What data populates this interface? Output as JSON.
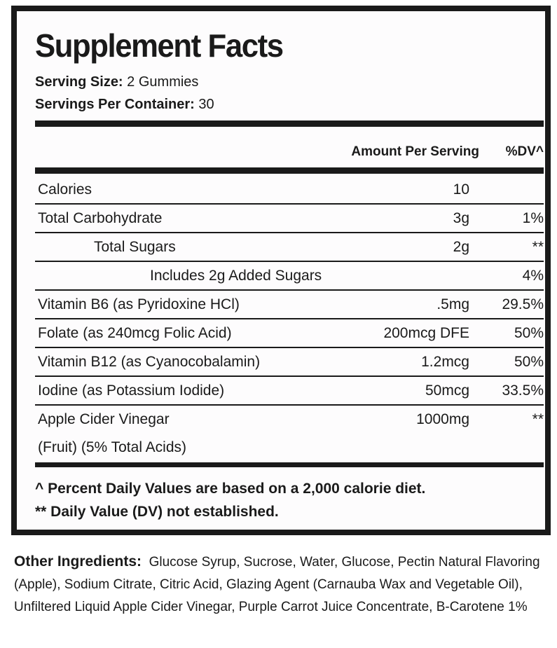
{
  "title": "Supplement Facts",
  "serving_size": {
    "label": "Serving Size:",
    "value": "2 Gummies"
  },
  "servings_per_container": {
    "label": "Servings Per Container:",
    "value": "30"
  },
  "headers": {
    "amount": "Amount Per Serving",
    "dv": "%DV^"
  },
  "rows": [
    {
      "name": "Calories",
      "amount": "10",
      "dv": ""
    },
    {
      "name": "Total Carbohydrate",
      "amount": "3g",
      "dv": "1%"
    },
    {
      "name": "Total Sugars",
      "amount": "2g",
      "dv": "**"
    },
    {
      "name": "Includes 2g Added Sugars",
      "amount": "",
      "dv": "4%"
    },
    {
      "name": "Vitamin B6 (as Pyridoxine HCl)",
      "amount": ".5mg",
      "dv": "29.5%"
    },
    {
      "name": "Folate (as 240mcg Folic Acid)",
      "amount": "200mcg DFE",
      "dv": "50%"
    },
    {
      "name": "Vitamin B12 (as Cyanocobalamin)",
      "amount": "1.2mcg",
      "dv": "50%"
    },
    {
      "name": "Iodine (as Potassium Iodide)",
      "amount": "50mcg",
      "dv": "33.5%"
    },
    {
      "name": "Apple Cider Vinegar",
      "name2": "(Fruit) (5% Total Acids)",
      "amount": "1000mg",
      "dv": "**"
    }
  ],
  "footnotes": [
    "^ Percent Daily Values are based on a 2,000 calorie diet.",
    "** Daily Value (DV) not established."
  ],
  "other_ingredients": {
    "label": "Other Ingredients:",
    "text": "Glucose Syrup, Sucrose, Water, Glucose, Pectin Natural Flavoring (Apple), Sodium Citrate, Citric Acid, Glazing Agent (Carnauba Wax and Vegetable Oil), Unfiltered Liquid Apple Cider Vinegar, Purple Carrot Juice Concentrate, B-Carotene 1%"
  }
}
